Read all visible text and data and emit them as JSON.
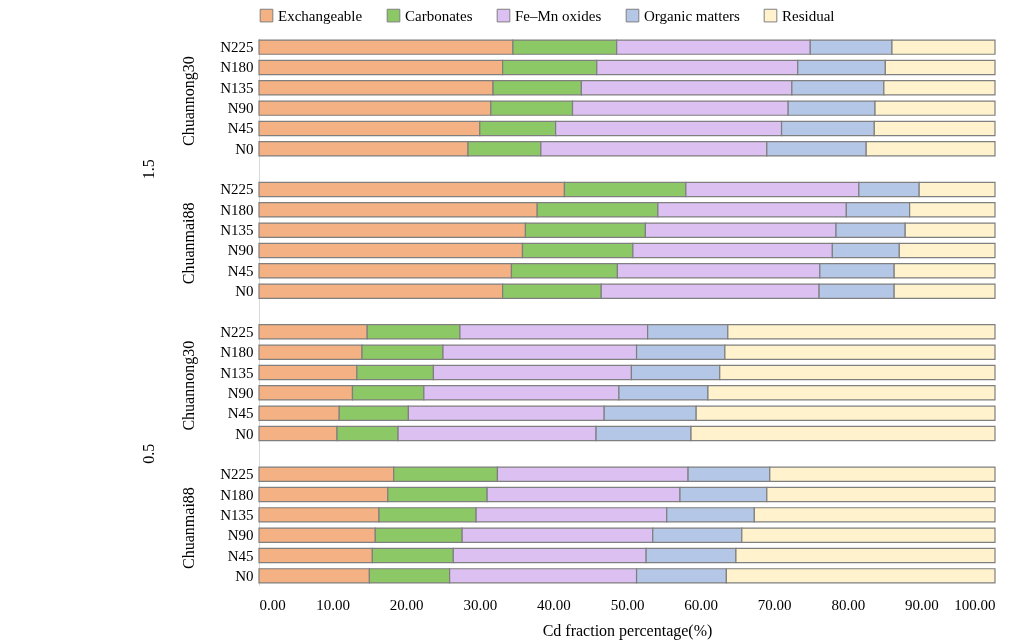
{
  "chart_data": {
    "type": "bar",
    "orientation": "horizontal",
    "stacked": true,
    "xlabel": "Cd fraction percentage(%)",
    "annotations": [
      "1.5",
      "Chuannong30",
      "Chuanmai88",
      "0.5",
      "Chuannong30",
      "Chuanmai88"
    ],
    "categories": [
      "N225",
      "N180",
      "N135",
      "N90",
      "N45",
      "N0",
      "N225",
      "N180",
      "N135",
      "N90",
      "N45",
      "N0",
      "N225",
      "N180",
      "N135",
      "N90",
      "N45",
      "N0",
      "N225",
      "N180",
      "N135",
      "N90",
      "N45",
      "N0"
    ],
    "series": [
      {
        "name": "Exchangeable",
        "color": "#f4b183",
        "values": [
          34.5,
          33.1,
          31.8,
          31.5,
          30.0,
          28.4,
          41.5,
          37.8,
          36.2,
          35.8,
          34.3,
          33.1,
          14.7,
          14.0,
          13.3,
          12.7,
          10.9,
          10.6,
          18.3,
          17.5,
          16.3,
          15.8,
          15.4,
          15.0
        ]
      },
      {
        "name": "Carbonates",
        "color": "#8cc865",
        "values": [
          14.1,
          12.8,
          12.0,
          11.1,
          10.3,
          9.9,
          16.5,
          16.4,
          16.3,
          15.0,
          14.4,
          13.4,
          12.6,
          11.0,
          10.4,
          9.7,
          9.4,
          8.3,
          14.1,
          13.5,
          13.2,
          11.8,
          11.0,
          10.9
        ]
      },
      {
        "name": "Fe–Mn oxides",
        "color": "#dcc0f2",
        "values": [
          26.3,
          27.3,
          28.6,
          29.3,
          30.7,
          30.7,
          23.5,
          25.6,
          25.9,
          27.1,
          27.5,
          29.6,
          25.5,
          26.3,
          26.9,
          26.5,
          26.6,
          26.9,
          25.9,
          26.2,
          25.9,
          25.9,
          26.2,
          25.4
        ]
      },
      {
        "name": "Organic matters",
        "color": "#b4c7e7",
        "values": [
          11.1,
          11.9,
          12.5,
          11.8,
          12.6,
          13.5,
          8.2,
          8.6,
          9.4,
          9.1,
          10.1,
          10.2,
          10.9,
          12.0,
          12.0,
          12.1,
          12.5,
          12.9,
          11.1,
          11.8,
          11.9,
          12.1,
          12.2,
          12.2
        ]
      },
      {
        "name": "Residual",
        "color": "#fff2cc",
        "values": [
          14.0,
          14.9,
          15.1,
          16.3,
          16.4,
          17.5,
          10.3,
          11.6,
          12.2,
          13.0,
          13.7,
          13.7,
          36.3,
          36.7,
          37.4,
          39.0,
          40.6,
          41.3,
          30.6,
          31.0,
          32.7,
          34.4,
          35.2,
          36.5
        ]
      }
    ],
    "xlim": [
      0,
      100
    ],
    "xticks": [
      {
        "value": 0,
        "label": "0.00"
      },
      {
        "value": 10,
        "label": "10.00"
      },
      {
        "value": 20,
        "label": "20.00"
      },
      {
        "value": 30,
        "label": "30.00"
      },
      {
        "value": 40,
        "label": "40.00"
      },
      {
        "value": 50,
        "label": "50.00"
      },
      {
        "value": 60,
        "label": "60.00"
      },
      {
        "value": 70,
        "label": "70.00"
      },
      {
        "value": 80,
        "label": "80.00"
      },
      {
        "value": 90,
        "label": "90.00"
      },
      {
        "value": 100,
        "label": "100.00"
      }
    ],
    "grid": false,
    "legend": "top"
  }
}
